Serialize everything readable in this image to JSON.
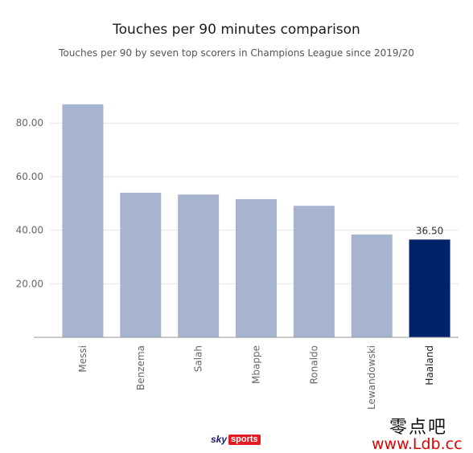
{
  "chart_data": {
    "type": "bar",
    "title": "Touches per 90 minutes comparison",
    "subtitle": "Touches per 90 by seven top scorers in Champions League since 2019/20",
    "categories": [
      "Messi",
      "Benzema",
      "Salah",
      "Mbappe",
      "Ronaldo",
      "Lewandowski",
      "Haaland"
    ],
    "values": [
      87.0,
      54.0,
      53.3,
      51.6,
      49.1,
      38.4,
      36.5
    ],
    "ylim": [
      0,
      90
    ],
    "yticks": [
      20,
      40,
      60,
      80
    ],
    "ytick_labels": [
      "20.00",
      "40.00",
      "60.00",
      "80.00"
    ],
    "grid": true,
    "highlight": {
      "category": "Haaland",
      "label": "36.50"
    },
    "colors": {
      "bar": "#a6b4cf",
      "highlight": "#00226a",
      "grid": "#e6e6e6",
      "axis": "#999999",
      "tick_text": "#666666"
    }
  },
  "branding": {
    "logo_sky": "sky",
    "logo_sports": "sports"
  },
  "watermark": {
    "cn_text": "零点吧",
    "url": "www.Ldb.cc"
  }
}
